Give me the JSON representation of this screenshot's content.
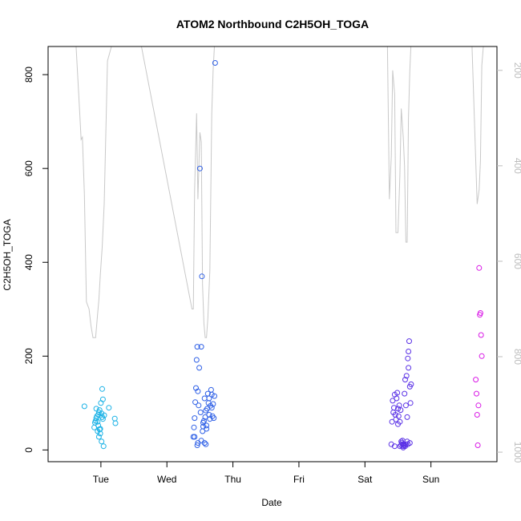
{
  "chart_data": {
    "type": "scatter",
    "title": "ATOM2 Northbound C2H5OH_TOGA",
    "xlabel": "Date",
    "ylabel": "C2H5OH_TOGA",
    "x_ticks": [
      "Tue",
      "Wed",
      "Thu",
      "Fri",
      "Sat",
      "Sun"
    ],
    "y_ticks": [
      0,
      200,
      400,
      600,
      800
    ],
    "ylim": [
      -25,
      860
    ],
    "secondary_y": {
      "ticks": [
        200,
        400,
        600,
        800,
        1000
      ],
      "reversed": true,
      "color": "#bdbdbd",
      "range": [
        150,
        1020
      ]
    },
    "grid": false,
    "marker": "open-circle",
    "series": [
      {
        "color": "#1ab2e6",
        "points": [
          [
            0.75,
            93
          ],
          [
            0.9,
            48
          ],
          [
            0.91,
            58
          ],
          [
            0.92,
            62
          ],
          [
            0.93,
            68
          ],
          [
            0.94,
            72
          ],
          [
            0.95,
            40
          ],
          [
            0.96,
            75
          ],
          [
            0.97,
            80
          ],
          [
            0.98,
            85
          ],
          [
            0.99,
            45
          ],
          [
            1.0,
            100
          ],
          [
            1.01,
            78
          ],
          [
            1.02,
            70
          ],
          [
            1.03,
            66
          ],
          [
            0.96,
            52
          ],
          [
            0.97,
            28
          ],
          [
            0.99,
            35
          ],
          [
            1.01,
            18
          ],
          [
            1.03,
            108
          ],
          [
            1.02,
            130
          ],
          [
            1.04,
            8
          ],
          [
            1.05,
            74
          ],
          [
            1.12,
            90
          ],
          [
            1.21,
            67
          ],
          [
            1.22,
            57
          ],
          [
            0.93,
            88
          ],
          [
            0.95,
            60
          ],
          [
            0.98,
            44
          ]
        ]
      },
      {
        "color": "#2f60e6",
        "points": [
          [
            2.4,
            28
          ],
          [
            2.41,
            48
          ],
          [
            2.42,
            68
          ],
          [
            2.43,
            102
          ],
          [
            2.44,
            132
          ],
          [
            2.45,
            192
          ],
          [
            2.46,
            220
          ],
          [
            2.47,
            125
          ],
          [
            2.48,
            95
          ],
          [
            2.49,
            175
          ],
          [
            2.5,
            600
          ],
          [
            2.51,
            80
          ],
          [
            2.52,
            220
          ],
          [
            2.53,
            370
          ],
          [
            2.54,
            40
          ],
          [
            2.55,
            58
          ],
          [
            2.56,
            62
          ],
          [
            2.57,
            110
          ],
          [
            2.58,
            70
          ],
          [
            2.59,
            84
          ],
          [
            2.6,
            52
          ],
          [
            2.61,
            88
          ],
          [
            2.62,
            120
          ],
          [
            2.63,
            100
          ],
          [
            2.64,
            75
          ],
          [
            2.65,
            66
          ],
          [
            2.66,
            94
          ],
          [
            2.67,
            128
          ],
          [
            2.68,
            118
          ],
          [
            2.69,
            72
          ],
          [
            2.7,
            98
          ],
          [
            2.71,
            68
          ],
          [
            2.72,
            115
          ],
          [
            2.73,
            825
          ],
          [
            2.47,
            15
          ],
          [
            2.52,
            20
          ],
          [
            2.57,
            15
          ],
          [
            2.59,
            12
          ],
          [
            2.46,
            10
          ],
          [
            2.55,
            50
          ],
          [
            2.6,
            45
          ],
          [
            2.64,
            110
          ],
          [
            2.68,
            90
          ],
          [
            2.42,
            28
          ]
        ]
      },
      {
        "color": "#5b32e6",
        "points": [
          [
            5.4,
            12
          ],
          [
            5.41,
            60
          ],
          [
            5.42,
            105
          ],
          [
            5.43,
            80
          ],
          [
            5.44,
            90
          ],
          [
            5.45,
            118
          ],
          [
            5.46,
            75
          ],
          [
            5.47,
            65
          ],
          [
            5.48,
            110
          ],
          [
            5.49,
            122
          ],
          [
            5.5,
            88
          ],
          [
            5.51,
            72
          ],
          [
            5.52,
            95
          ],
          [
            5.53,
            60
          ],
          [
            5.54,
            85
          ],
          [
            5.55,
            10
          ],
          [
            5.56,
            15
          ],
          [
            5.57,
            20
          ],
          [
            5.58,
            8
          ],
          [
            5.59,
            12
          ],
          [
            5.6,
            120
          ],
          [
            5.61,
            150
          ],
          [
            5.62,
            95
          ],
          [
            5.63,
            158
          ],
          [
            5.64,
            70
          ],
          [
            5.65,
            195
          ],
          [
            5.66,
            175
          ],
          [
            5.67,
            232
          ],
          [
            5.68,
            135
          ],
          [
            5.69,
            100
          ],
          [
            5.7,
            140
          ],
          [
            5.45,
            8
          ],
          [
            5.5,
            55
          ],
          [
            5.55,
            18
          ],
          [
            5.58,
            5
          ],
          [
            5.6,
            10
          ],
          [
            5.62,
            12
          ],
          [
            5.64,
            18
          ],
          [
            5.66,
            210
          ],
          [
            5.68,
            15
          ],
          [
            5.57,
            12
          ],
          [
            5.53,
            8
          ],
          [
            5.61,
            8
          ],
          [
            5.65,
            12
          ]
        ]
      },
      {
        "color": "#d91ae6",
        "points": [
          [
            6.68,
            150
          ],
          [
            6.69,
            120
          ],
          [
            6.7,
            75
          ],
          [
            6.71,
            10
          ],
          [
            6.72,
            95
          ],
          [
            6.73,
            388
          ],
          [
            6.74,
            288
          ],
          [
            6.75,
            292
          ],
          [
            6.76,
            245
          ],
          [
            6.77,
            200
          ]
        ]
      }
    ],
    "line_series": {
      "color": "#c8c8c8",
      "axis": "secondary",
      "values_note_units": "secondary axis units (reversed)",
      "points": [
        [
          0.62,
          140
        ],
        [
          0.68,
          290
        ],
        [
          0.7,
          345
        ],
        [
          0.72,
          340
        ],
        [
          0.75,
          460
        ],
        [
          0.78,
          685
        ],
        [
          0.82,
          700
        ],
        [
          0.85,
          735
        ],
        [
          0.88,
          760
        ],
        [
          0.9,
          760
        ],
        [
          0.92,
          760
        ],
        [
          0.95,
          710
        ],
        [
          0.97,
          680
        ],
        [
          0.99,
          630
        ],
        [
          1.02,
          570
        ],
        [
          1.05,
          480
        ],
        [
          1.1,
          180
        ],
        [
          1.18,
          140
        ],
        [
          1.3,
          140
        ],
        [
          1.6,
          140
        ],
        [
          2.38,
          700
        ],
        [
          2.4,
          700
        ],
        [
          2.42,
          450
        ],
        [
          2.45,
          290
        ],
        [
          2.47,
          470
        ],
        [
          2.5,
          330
        ],
        [
          2.52,
          350
        ],
        [
          2.54,
          650
        ],
        [
          2.56,
          730
        ],
        [
          2.58,
          760
        ],
        [
          2.6,
          760
        ],
        [
          2.62,
          720
        ],
        [
          2.65,
          620
        ],
        [
          2.68,
          290
        ],
        [
          2.7,
          200
        ],
        [
          2.72,
          150
        ],
        [
          2.75,
          140
        ],
        [
          5.34,
          140
        ],
        [
          5.37,
          470
        ],
        [
          5.4,
          380
        ],
        [
          5.42,
          200
        ],
        [
          5.45,
          250
        ],
        [
          5.47,
          540
        ],
        [
          5.5,
          540
        ],
        [
          5.53,
          420
        ],
        [
          5.55,
          280
        ],
        [
          5.58,
          340
        ],
        [
          5.6,
          400
        ],
        [
          5.62,
          560
        ],
        [
          5.64,
          560
        ],
        [
          5.66,
          300
        ],
        [
          5.68,
          200
        ],
        [
          5.7,
          140
        ],
        [
          5.8,
          140
        ],
        [
          6.5,
          140
        ],
        [
          6.62,
          140
        ],
        [
          6.7,
          480
        ],
        [
          6.73,
          450
        ],
        [
          6.75,
          390
        ],
        [
          6.77,
          190
        ],
        [
          6.8,
          140
        ]
      ]
    },
    "xlim": [
      0.2,
      7.0
    ]
  }
}
